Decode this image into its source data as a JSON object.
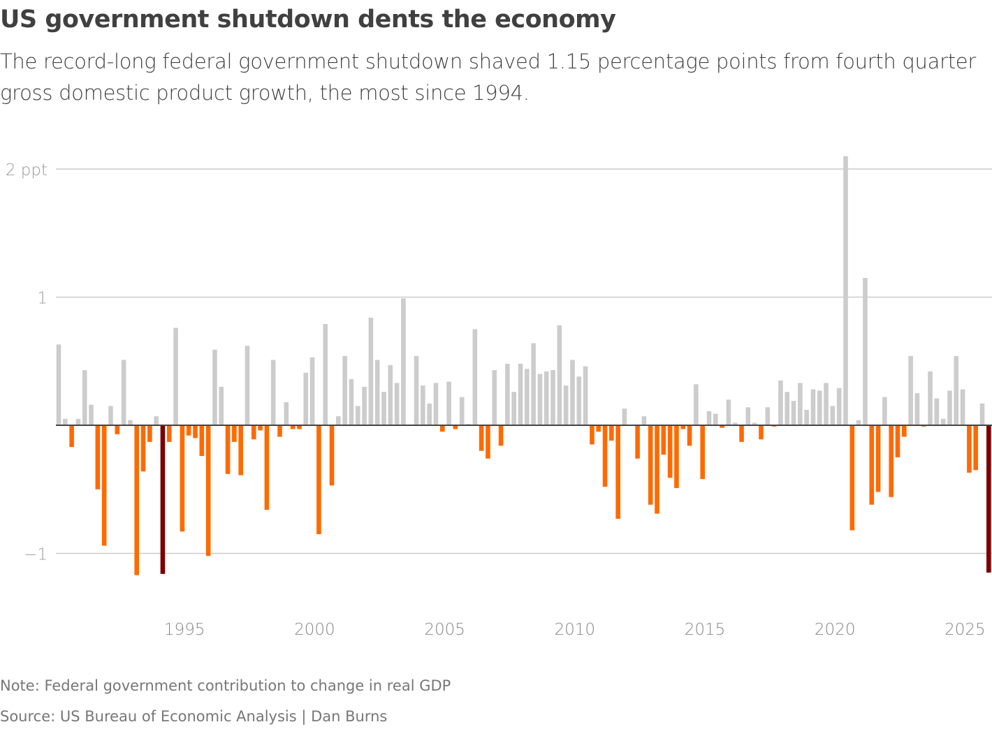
{
  "title": "US government shutdown dents the economy",
  "subtitle": "The record-long federal government shutdown shaved 1.15 percentage points from fourth quarter gross domestic product growth, the most since 1994.",
  "note": "Note: Federal government contribution to change in real GDP",
  "source": "Source: US Bureau of Economic Analysis | Dan Burns",
  "colors": {
    "positive": "#cccccc",
    "negative": "#ff6a00",
    "highlight": "#7a0000",
    "grid": "#cccccc",
    "zero_line": "#444444"
  },
  "chart_data": {
    "type": "bar",
    "title": "US government shutdown dents the economy",
    "xlabel": "",
    "ylabel": "",
    "ylim": [
      -1.4,
      2.2
    ],
    "grid": true,
    "yticks": [
      {
        "value": 2,
        "label": "2 ppt"
      },
      {
        "value": 1,
        "label": "1"
      },
      {
        "value": -1,
        "label": "−1"
      }
    ],
    "xticks": [
      "1995",
      "2000",
      "2005",
      "2010",
      "2015",
      "2020",
      "2025"
    ],
    "first_quarter": "1990 Q1",
    "highlight_quarters": [
      "1994 Q1",
      "2025 Q4"
    ],
    "values": [
      0.63,
      0.05,
      -0.17,
      0.05,
      0.43,
      0.16,
      -0.5,
      -0.94,
      0.15,
      -0.07,
      0.51,
      0.04,
      -1.17,
      -0.36,
      -0.13,
      0.07,
      -1.16,
      -0.13,
      0.76,
      -0.83,
      -0.08,
      -0.1,
      -0.24,
      -1.02,
      0.59,
      0.3,
      -0.38,
      -0.13,
      -0.39,
      0.62,
      -0.11,
      -0.04,
      -0.66,
      0.51,
      -0.09,
      0.18,
      -0.03,
      -0.03,
      0.41,
      0.53,
      -0.85,
      0.79,
      -0.47,
      0.07,
      0.54,
      0.36,
      0.15,
      0.3,
      0.84,
      0.51,
      0.26,
      0.47,
      0.33,
      0.99,
      0.0,
      0.54,
      0.31,
      0.17,
      0.33,
      -0.05,
      0.34,
      -0.03,
      0.22,
      0.01,
      0.75,
      -0.2,
      -0.26,
      0.43,
      -0.16,
      0.48,
      0.26,
      0.48,
      0.44,
      0.64,
      0.4,
      0.42,
      0.43,
      0.78,
      0.31,
      0.51,
      0.38,
      0.46,
      -0.15,
      -0.05,
      -0.48,
      -0.12,
      -0.73,
      0.13,
      0.0,
      -0.26,
      0.07,
      -0.62,
      -0.69,
      -0.23,
      -0.41,
      -0.49,
      -0.03,
      -0.16,
      0.32,
      -0.42,
      0.11,
      0.09,
      -0.02,
      0.2,
      0.02,
      -0.13,
      0.14,
      0.02,
      -0.11,
      0.14,
      -0.01,
      0.35,
      0.26,
      0.19,
      0.33,
      0.12,
      0.28,
      0.27,
      0.33,
      0.15,
      0.29,
      2.1,
      -0.82,
      0.04,
      1.15,
      -0.62,
      -0.52,
      0.22,
      -0.56,
      -0.25,
      -0.09,
      0.54,
      0.25,
      -0.01,
      0.42,
      0.21,
      0.05,
      0.27,
      0.54,
      0.28,
      -0.37,
      -0.35,
      0.17,
      -1.15
    ]
  }
}
